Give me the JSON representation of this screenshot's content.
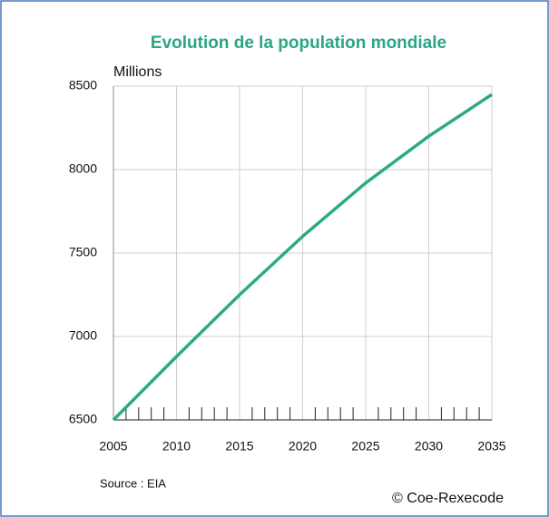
{
  "chart_data": {
    "type": "line",
    "title": "Evolution de la population mondiale",
    "y_label": "Millions",
    "source": "Source : EIA",
    "copyright": "© Coe-Rexecode",
    "x": [
      2005,
      2010,
      2015,
      2020,
      2025,
      2030,
      2035
    ],
    "series": [
      {
        "name": "Population mondiale",
        "color": "#2aaa87",
        "values": [
          6500,
          6880,
          7250,
          7600,
          7920,
          8200,
          8450
        ]
      }
    ],
    "xlim": [
      2005,
      2035
    ],
    "xticks": [
      2005,
      2010,
      2015,
      2020,
      2025,
      2030,
      2035
    ],
    "ylim": [
      6500,
      8500
    ],
    "yticks": [
      6500,
      7000,
      7500,
      8000,
      8500
    ],
    "grid": true
  }
}
